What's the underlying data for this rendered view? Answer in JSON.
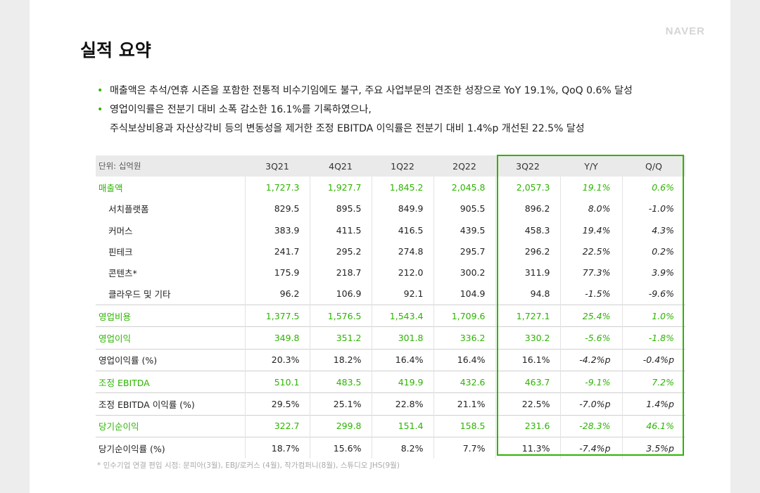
{
  "logo": "NAVER",
  "title": "실적 요약",
  "bullets": [
    {
      "lines": [
        "매출액은 추석/연휴 시즌을 포함한 전통적 비수기임에도 불구, 주요 사업부문의 견조한 성장으로 YoY 19.1%, QoQ 0.6% 달성"
      ]
    },
    {
      "lines": [
        "영업이익률은 전분기 대비 소폭 감소한 16.1%를 기록하였으나,",
        "주식보상비용과 자산상각비 등의 변동성을 제거한 조정 EBITDA 이익률은 전분기 대비 1.4%p 개선된 22.5% 달성"
      ]
    }
  ],
  "table": {
    "unit": "단위: 십억원",
    "columns": [
      "3Q21",
      "4Q21",
      "1Q22",
      "2Q22",
      "3Q22",
      "Y/Y",
      "Q/Q"
    ],
    "rows": [
      {
        "label": "매출액",
        "type": "main",
        "values": [
          "1,727.3",
          "1,927.7",
          "1,845.2",
          "2,045.8",
          "2,057.3",
          "19.1%",
          "0.6%"
        ]
      },
      {
        "label": "서치플랫폼",
        "type": "sub",
        "values": [
          "829.5",
          "895.5",
          "849.9",
          "905.5",
          "896.2",
          "8.0%",
          "-1.0%"
        ]
      },
      {
        "label": "커머스",
        "type": "sub",
        "values": [
          "383.9",
          "411.5",
          "416.5",
          "439.5",
          "458.3",
          "19.4%",
          "4.3%"
        ]
      },
      {
        "label": "핀테크",
        "type": "sub",
        "values": [
          "241.7",
          "295.2",
          "274.8",
          "295.7",
          "296.2",
          "22.5%",
          "0.2%"
        ]
      },
      {
        "label": "콘텐츠*",
        "type": "sub",
        "values": [
          "175.9",
          "218.7",
          "212.0",
          "300.2",
          "311.9",
          "77.3%",
          "3.9%"
        ]
      },
      {
        "label": "클라우드 및 기타",
        "type": "sub",
        "values": [
          "96.2",
          "106.9",
          "92.1",
          "104.9",
          "94.8",
          "-1.5%",
          "-9.6%"
        ]
      },
      {
        "label": "영업비용",
        "type": "main",
        "values": [
          "1,377.5",
          "1,576.5",
          "1,543.4",
          "1,709.6",
          "1,727.1",
          "25.4%",
          "1.0%"
        ]
      },
      {
        "label": "영업이익",
        "type": "main",
        "values": [
          "349.8",
          "351.2",
          "301.8",
          "336.2",
          "330.2",
          "-5.6%",
          "-1.8%"
        ]
      },
      {
        "label": "영업이익률 (%)",
        "type": "plain",
        "values": [
          "20.3%",
          "18.2%",
          "16.4%",
          "16.4%",
          "16.1%",
          "-4.2%p",
          "-0.4%p"
        ]
      },
      {
        "label": "조정 EBITDA",
        "type": "main",
        "values": [
          "510.1",
          "483.5",
          "419.9",
          "432.6",
          "463.7",
          "-9.1%",
          "7.2%"
        ]
      },
      {
        "label": "조정 EBITDA 이익률 (%)",
        "type": "plain",
        "values": [
          "29.5%",
          "25.1%",
          "22.8%",
          "21.1%",
          "22.5%",
          "-7.0%p",
          "1.4%p"
        ]
      },
      {
        "label": "당기순이익",
        "type": "main",
        "values": [
          "322.7",
          "299.8",
          "151.4",
          "158.5",
          "231.6",
          "-28.3%",
          "46.1%"
        ]
      },
      {
        "label": "당기순이익률 (%)",
        "type": "plain",
        "values": [
          "18.7%",
          "15.6%",
          "8.2%",
          "7.7%",
          "11.3%",
          "-7.4%p",
          "3.5%p"
        ]
      }
    ]
  },
  "footnote": "* 인수기업 연결 편입 시점: 문피아(3월), EBJ/로커스 (4월), 작가컴퍼니(8월), 스튜디오 JHS(9월)",
  "colors": {
    "accent": "#2db400",
    "header_bg": "#eaeaea"
  }
}
